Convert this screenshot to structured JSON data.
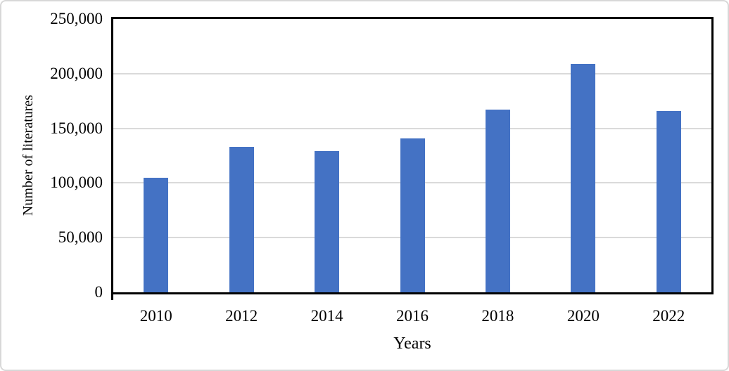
{
  "chart_data": {
    "type": "bar",
    "title": "",
    "categories": [
      "2010",
      "2012",
      "2014",
      "2016",
      "2018",
      "2020",
      "2022"
    ],
    "values": [
      105000,
      133000,
      129000,
      141000,
      167000,
      209000,
      166000
    ],
    "xlabel": "Years",
    "ylabel": "Number of literatures",
    "ylim": [
      0,
      250000
    ],
    "ytick_interval": 50000,
    "ytick_labels": [
      "0",
      "50,000",
      "100,000",
      "150,000",
      "200,000",
      "250,000"
    ],
    "grid": "horizontal-only",
    "legend": "none",
    "bar_color": "#4472C4",
    "gridline_color": "#dadada",
    "plot_border_color": "#000000",
    "text_color": "#000000"
  }
}
